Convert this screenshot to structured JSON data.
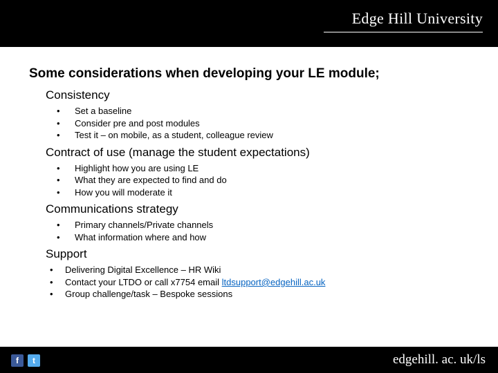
{
  "brand": "Edge Hill University",
  "footer_url": "edgehill. ac. uk/ls",
  "main_title": "Some considerations when developing your LE module;",
  "sections": [
    {
      "title": "Consistency",
      "items": [
        "Set a baseline",
        "Consider pre and post modules",
        "Test it – on mobile, as a student, colleague review"
      ]
    },
    {
      "title": "Contract of use (manage the student expectations)",
      "items": [
        "Highlight how you are using LE",
        "What they are expected to find and do",
        "How you will moderate it"
      ]
    },
    {
      "title": "Communications strategy",
      "items": [
        "Primary channels/Private channels",
        "What information where and how"
      ]
    },
    {
      "title": "Support",
      "items_special": [
        {
          "text": "Delivering Digital Excellence – HR Wiki"
        },
        {
          "prefix": "Contact your LTDO or call x7754 email ",
          "link": "ltdsupport@edgehill.ac.uk"
        },
        {
          "text": "Group challenge/task – Bespoke sessions"
        }
      ]
    }
  ],
  "colors": {
    "header_bg": "#000000",
    "footer_bg": "#000000",
    "body_bg": "#ffffff",
    "text": "#000000",
    "link": "#0563c1",
    "brand_text": "#ffffff"
  },
  "social": {
    "facebook_glyph": "f",
    "twitter_glyph": "t"
  }
}
